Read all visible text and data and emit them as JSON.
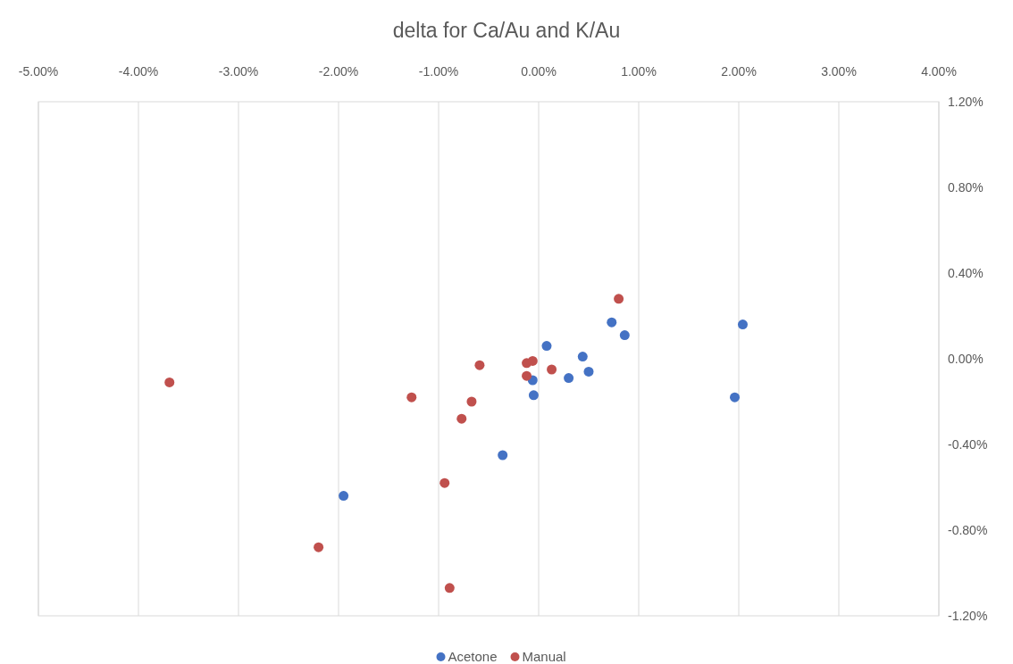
{
  "chart_data": {
    "type": "scatter",
    "title": "delta for Ca/Au and K/Au",
    "xlim": [
      -5,
      4
    ],
    "xticks": [
      {
        "value": -5,
        "label": "-5.00%"
      },
      {
        "value": -4,
        "label": "-4.00%"
      },
      {
        "value": -3,
        "label": "-3.00%"
      },
      {
        "value": -2,
        "label": "-2.00%"
      },
      {
        "value": -1,
        "label": "-1.00%"
      },
      {
        "value": 0,
        "label": "0.00%"
      },
      {
        "value": 1,
        "label": "1.00%"
      },
      {
        "value": 2,
        "label": "2.00%"
      },
      {
        "value": 3,
        "label": "3.00%"
      },
      {
        "value": 4,
        "label": "4.00%"
      }
    ],
    "ylim": [
      -1.2,
      1.2
    ],
    "yticks": [
      {
        "value": -1.2,
        "label": "-1.20%"
      },
      {
        "value": -0.8,
        "label": "-0.80%"
      },
      {
        "value": -0.4,
        "label": "-0.40%"
      },
      {
        "value": 0,
        "label": "0.00%"
      },
      {
        "value": 0.4,
        "label": "0.40%"
      },
      {
        "value": 0.8,
        "label": "0.80%"
      },
      {
        "value": 1.2,
        "label": "1.20%"
      }
    ],
    "grid": "x",
    "legend": "bottom",
    "marker": "circle",
    "series": [
      {
        "name": "Acetone",
        "color": "#4472c4",
        "x": [
          -1.95,
          -0.36,
          -0.06,
          -0.05,
          0.08,
          0.3,
          0.44,
          0.5,
          0.73,
          0.86,
          1.96,
          2.04
        ],
        "values": [
          -0.64,
          -0.45,
          -0.1,
          -0.17,
          0.06,
          -0.09,
          0.01,
          -0.06,
          0.17,
          0.11,
          -0.18,
          0.16
        ]
      },
      {
        "name": "Manual",
        "color": "#c0504d",
        "x": [
          -3.69,
          -2.2,
          -1.27,
          -0.94,
          -0.89,
          -0.77,
          -0.67,
          -0.59,
          -0.12,
          -0.12,
          -0.06,
          0.13,
          0.8
        ],
        "values": [
          -0.11,
          -0.88,
          -0.18,
          -0.58,
          -1.07,
          -0.28,
          -0.2,
          -0.03,
          -0.02,
          -0.08,
          -0.01,
          -0.05,
          0.28
        ]
      }
    ]
  }
}
